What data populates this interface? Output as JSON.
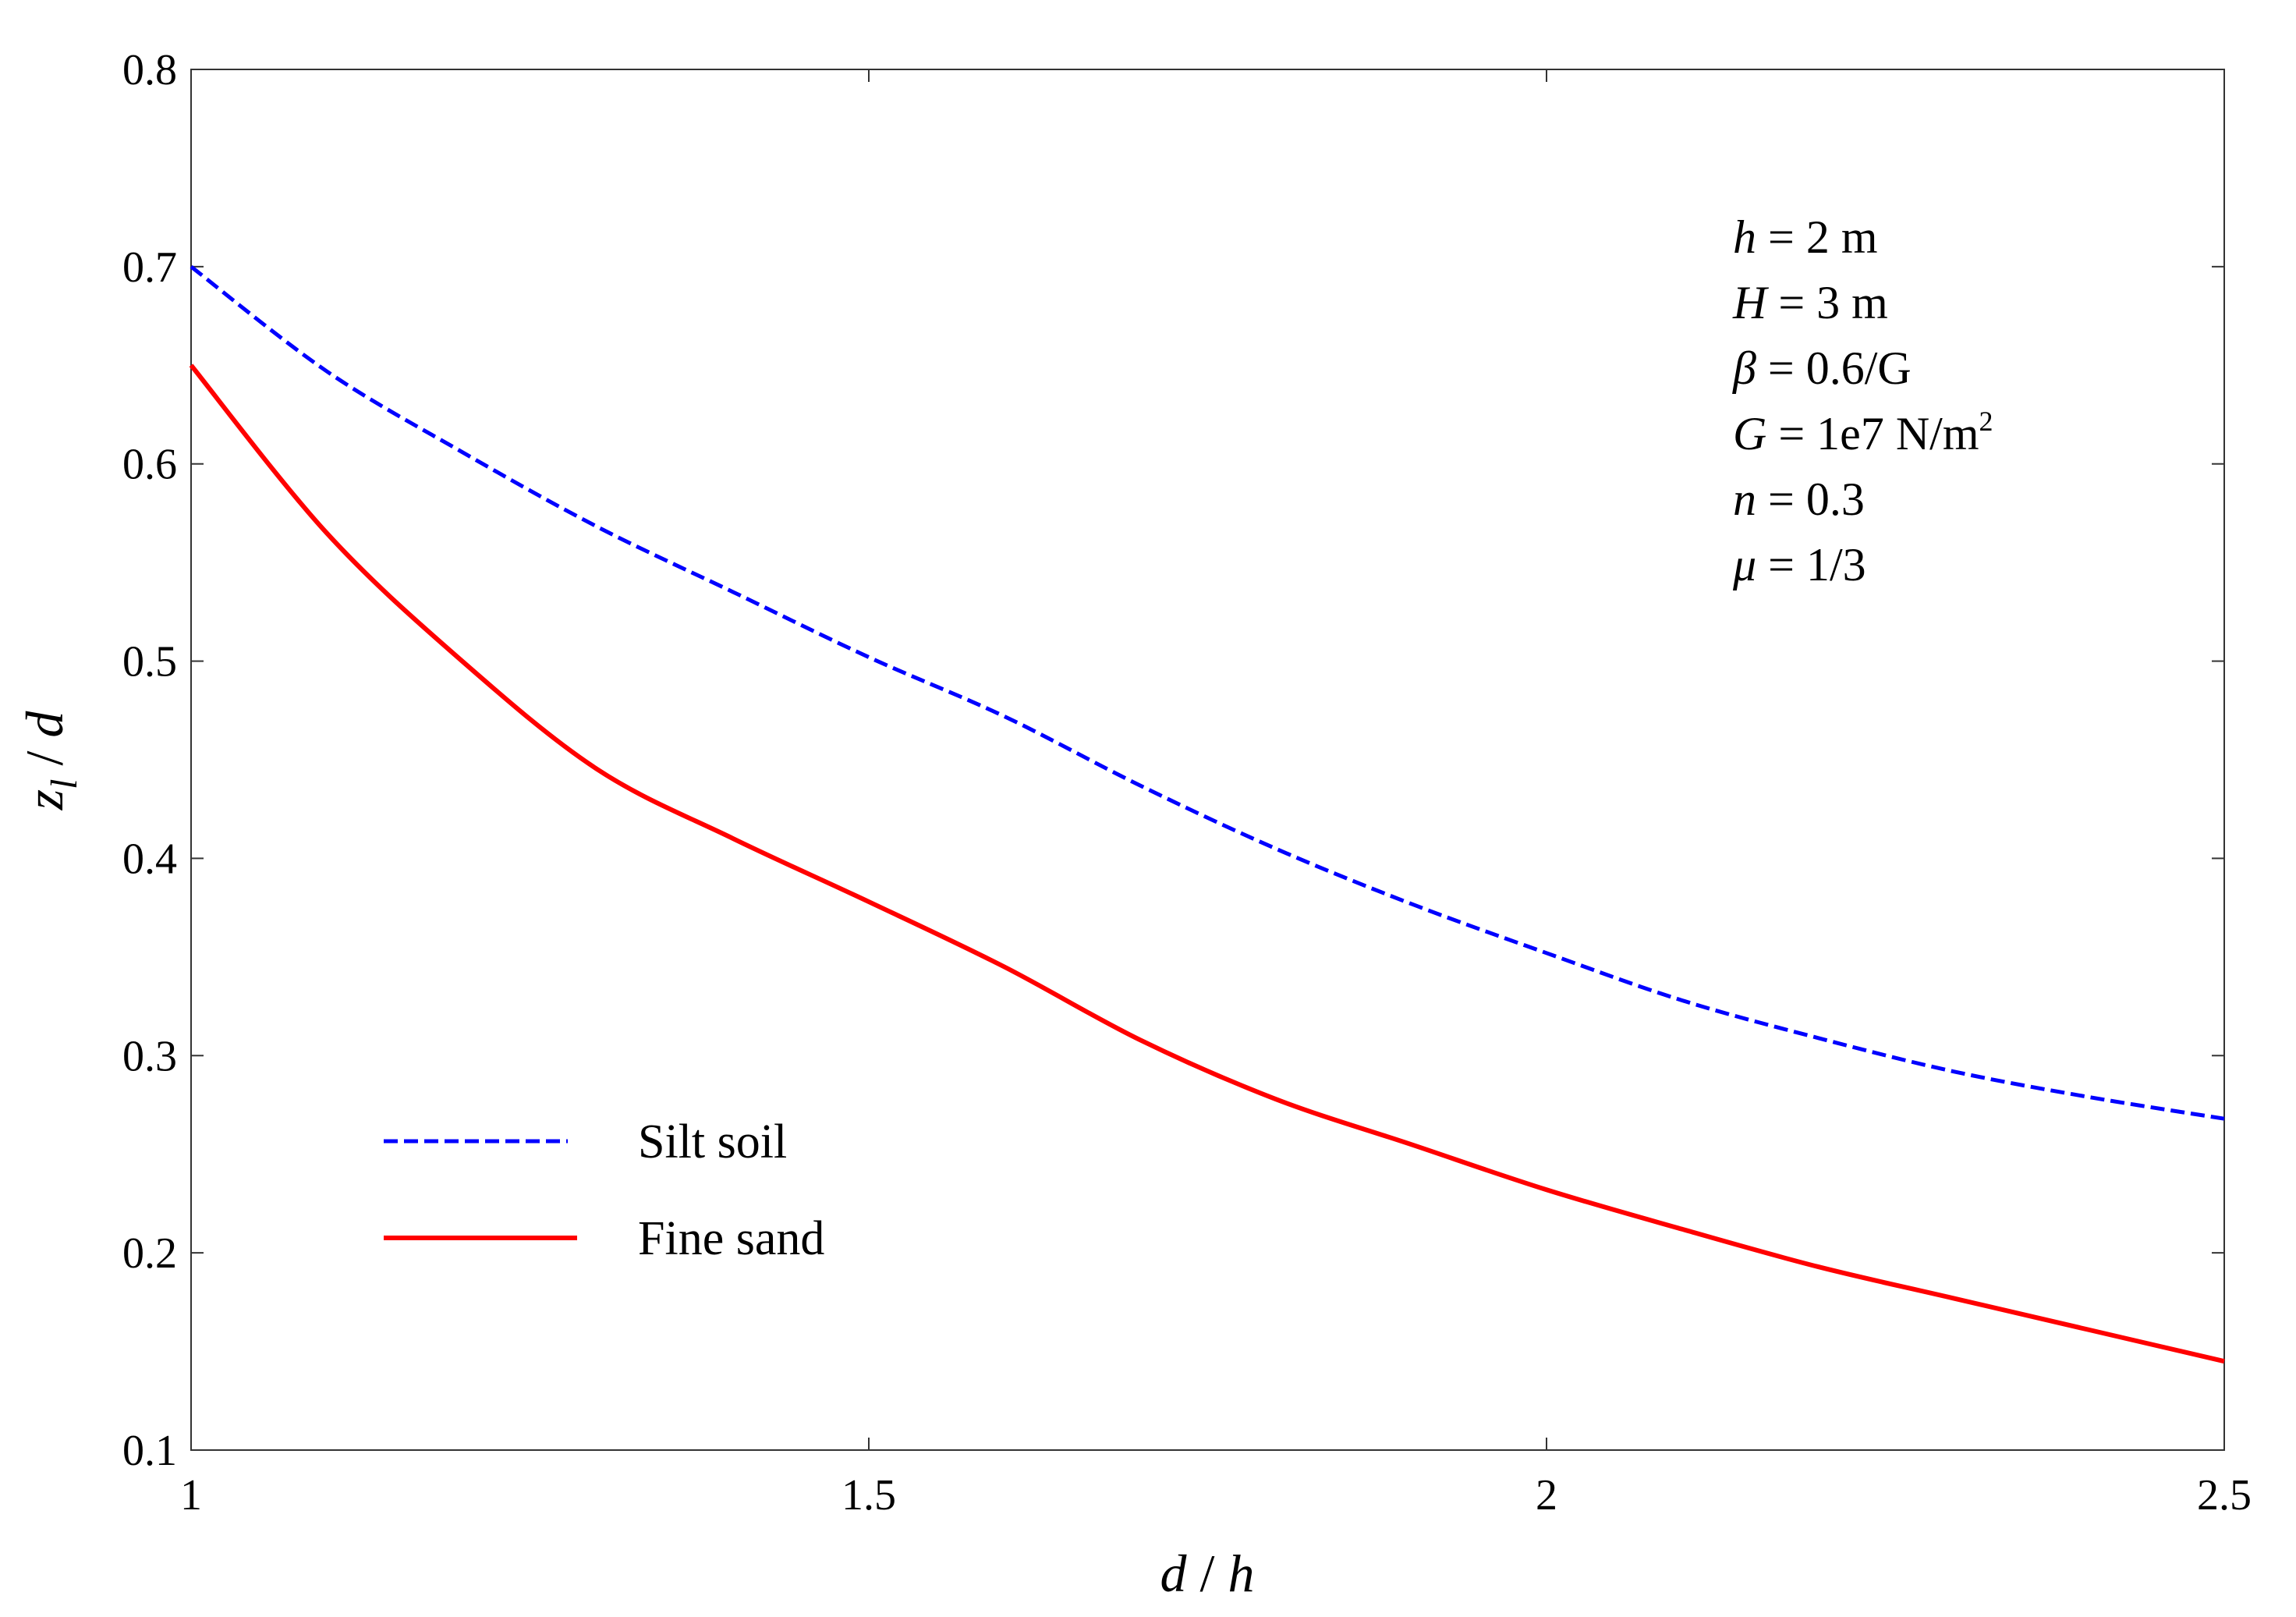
{
  "chart_data": {
    "type": "line",
    "xlabel": "d / h",
    "ylabel": "z_l / d",
    "xlim": [
      1,
      2.5
    ],
    "ylim": [
      0.1,
      0.8
    ],
    "x_ticks": [
      1,
      1.5,
      2,
      2.5
    ],
    "x_tick_labels": [
      "1",
      "1.5",
      "2",
      "2.5"
    ],
    "y_ticks": [
      0.1,
      0.2,
      0.3,
      0.4,
      0.5,
      0.6,
      0.7,
      0.8
    ],
    "y_tick_labels": [
      "0.1",
      "0.2",
      "0.3",
      "0.4",
      "0.5",
      "0.6",
      "0.7",
      "0.8"
    ],
    "grid": false,
    "legend_position": "bottom-left",
    "series": [
      {
        "name": "Silt soil",
        "color": "#0000ff",
        "style": "dashed",
        "x": [
          1.0,
          1.1,
          1.2,
          1.3,
          1.4,
          1.5,
          1.6,
          1.7,
          1.8,
          1.9,
          2.0,
          2.1,
          2.2,
          2.3,
          2.4,
          2.5
        ],
        "y": [
          0.7,
          0.647,
          0.606,
          0.568,
          0.535,
          0.502,
          0.472,
          0.437,
          0.405,
          0.377,
          0.352,
          0.328,
          0.309,
          0.292,
          0.279,
          0.268
        ]
      },
      {
        "name": "Fine sand",
        "color": "#ff0000",
        "style": "solid",
        "x": [
          1.0,
          1.1,
          1.2,
          1.3,
          1.4,
          1.5,
          1.6,
          1.7,
          1.8,
          1.9,
          2.0,
          2.1,
          2.2,
          2.3,
          2.4,
          2.5
        ],
        "y": [
          0.65,
          0.565,
          0.5,
          0.445,
          0.41,
          0.378,
          0.345,
          0.308,
          0.278,
          0.255,
          0.232,
          0.212,
          0.193,
          0.177,
          0.161,
          0.145
        ]
      }
    ],
    "annotations": {
      "h": {
        "var": "h",
        "text": " = 2 m"
      },
      "H": {
        "var": "H",
        "text": " = 3 m"
      },
      "beta": {
        "var": "β",
        "text": " = 0.6/G"
      },
      "G": {
        "var": "G",
        "text": " = 1e7 N/m",
        "sup": "2"
      },
      "n": {
        "var": "n",
        "text": " = 0.3"
      },
      "mu": {
        "var": "μ",
        "text": " = 1/3"
      }
    }
  },
  "axis_title_parts": {
    "x": {
      "a": "d",
      "sep": " / ",
      "b": "h"
    },
    "y": {
      "a": "z",
      "sub": "l",
      "sep": " / ",
      "b": "d"
    }
  }
}
